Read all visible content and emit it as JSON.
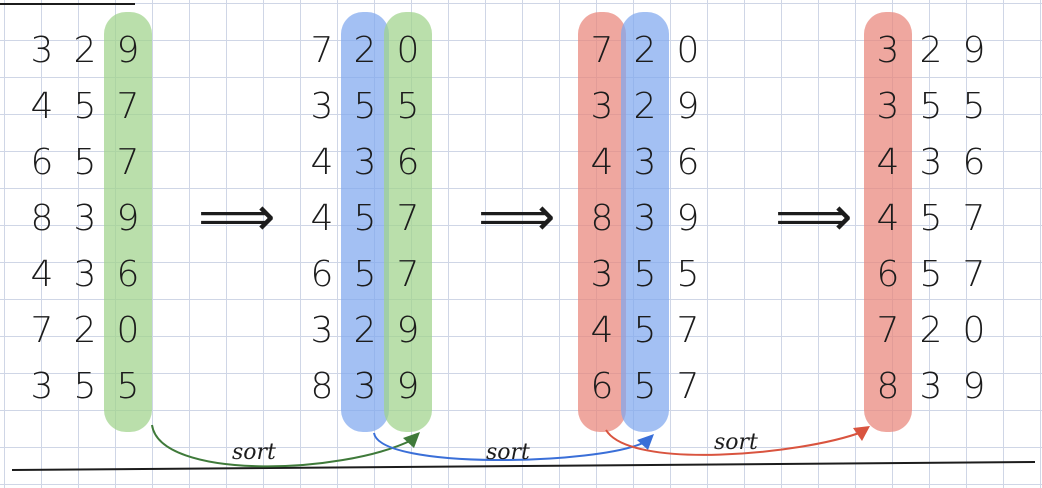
{
  "colors": {
    "green": "#9fd38a",
    "blue": "#7fa8ee",
    "red": "#e9857a",
    "ink": "#1c1c1c",
    "arrow_green": "#3f7a3a",
    "arrow_blue": "#3a6fd8",
    "arrow_red": "#d9543f"
  },
  "stages": [
    {
      "id": "input",
      "rows": [
        [
          "3",
          "2",
          "9"
        ],
        [
          "4",
          "5",
          "7"
        ],
        [
          "6",
          "5",
          "7"
        ],
        [
          "8",
          "3",
          "9"
        ],
        [
          "4",
          "3",
          "6"
        ],
        [
          "7",
          "2",
          "0"
        ],
        [
          "3",
          "5",
          "5"
        ]
      ],
      "highlight": [
        {
          "column": 2,
          "color": "green"
        }
      ]
    },
    {
      "id": "after-pass-1",
      "rows": [
        [
          "7",
          "2",
          "0"
        ],
        [
          "3",
          "5",
          "5"
        ],
        [
          "4",
          "3",
          "6"
        ],
        [
          "4",
          "5",
          "7"
        ],
        [
          "6",
          "5",
          "7"
        ],
        [
          "3",
          "2",
          "9"
        ],
        [
          "8",
          "3",
          "9"
        ]
      ],
      "highlight": [
        {
          "column": 1,
          "color": "blue"
        },
        {
          "column": 2,
          "color": "green"
        }
      ]
    },
    {
      "id": "after-pass-2",
      "rows": [
        [
          "7",
          "2",
          "0"
        ],
        [
          "3",
          "2",
          "9"
        ],
        [
          "4",
          "3",
          "6"
        ],
        [
          "8",
          "3",
          "9"
        ],
        [
          "3",
          "5",
          "5"
        ],
        [
          "4",
          "5",
          "7"
        ],
        [
          "6",
          "5",
          "7"
        ]
      ],
      "highlight": [
        {
          "column": 0,
          "color": "red"
        },
        {
          "column": 1,
          "color": "blue"
        }
      ]
    },
    {
      "id": "sorted",
      "rows": [
        [
          "3",
          "2",
          "9"
        ],
        [
          "3",
          "5",
          "5"
        ],
        [
          "4",
          "3",
          "6"
        ],
        [
          "4",
          "5",
          "7"
        ],
        [
          "6",
          "5",
          "7"
        ],
        [
          "7",
          "2",
          "0"
        ],
        [
          "8",
          "3",
          "9"
        ]
      ],
      "highlight": [
        {
          "column": 0,
          "color": "red"
        }
      ]
    }
  ],
  "transition_glyph": "⟹",
  "sort_labels": [
    {
      "text": "sort",
      "color": "arrow_green"
    },
    {
      "text": "sort",
      "color": "arrow_blue"
    },
    {
      "text": "sort",
      "color": "arrow_red"
    }
  ]
}
